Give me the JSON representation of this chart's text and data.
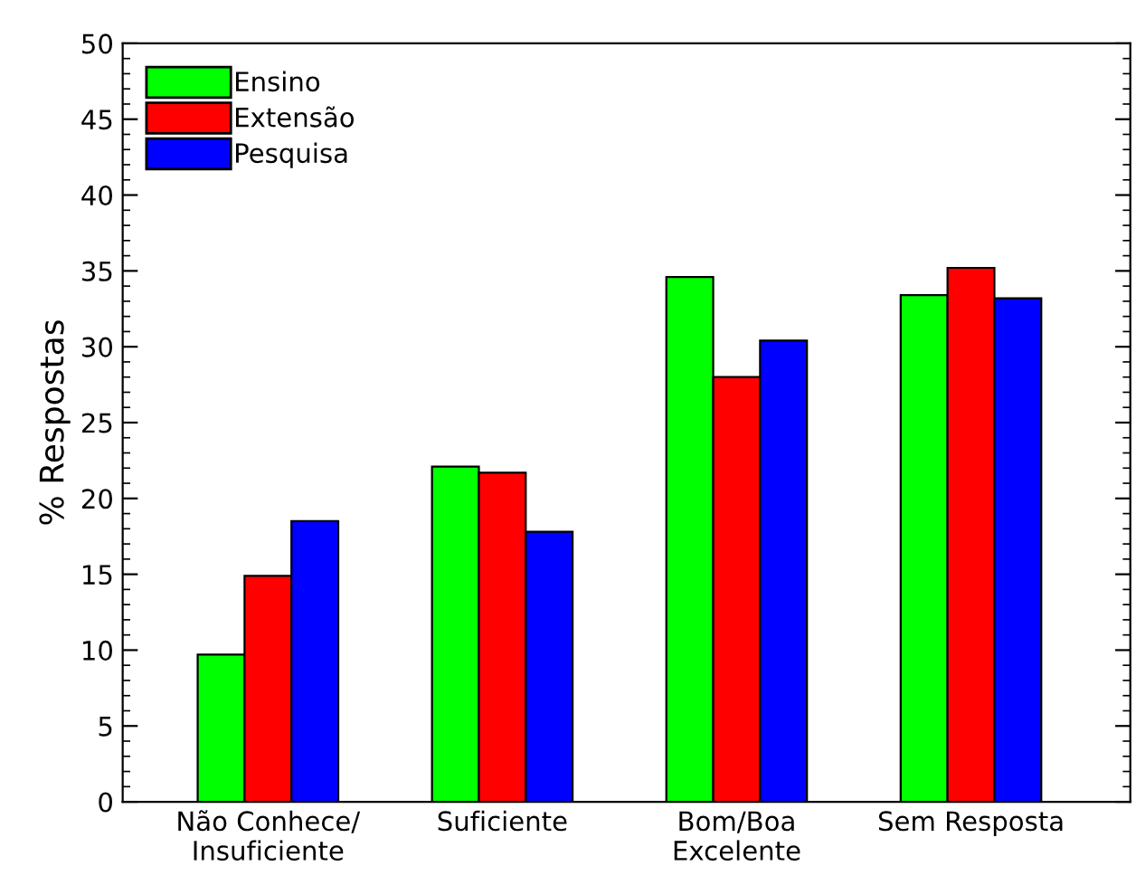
{
  "chart_data": {
    "type": "bar",
    "ylabel": "% Respostas",
    "categories": [
      "Não Conhece/\nInsuficiente",
      "Suficiente",
      "Bom/Boa\nExcelente",
      "Sem Resposta"
    ],
    "series": [
      {
        "name": "Ensino",
        "color": "#00ff00",
        "values": [
          9.7,
          22.1,
          34.6,
          33.4
        ]
      },
      {
        "name": "Extensão",
        "color": "#ff0000",
        "values": [
          14.9,
          21.7,
          28.0,
          35.2
        ]
      },
      {
        "name": "Pesquisa",
        "color": "#0000ff",
        "values": [
          18.5,
          17.8,
          30.4,
          33.2
        ]
      }
    ],
    "ylim": [
      0,
      50
    ],
    "yticks": [
      0,
      5,
      10,
      15,
      20,
      25,
      30,
      35,
      40,
      45,
      50
    ],
    "grid": false,
    "legend": "top left"
  }
}
